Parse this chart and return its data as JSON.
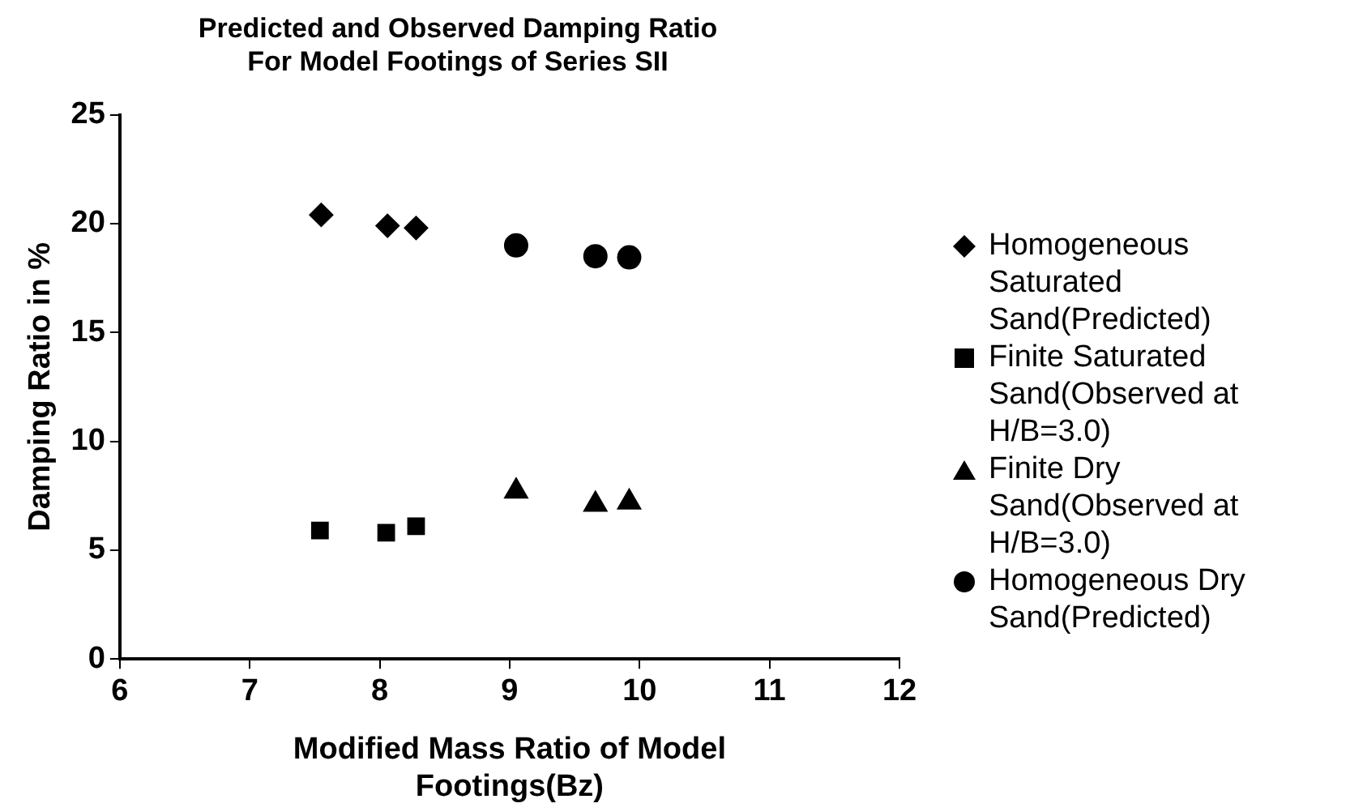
{
  "chart_data": {
    "type": "scatter",
    "title": "Predicted and Observed Damping Ratio\nFor Model Footings of Series SII",
    "xlabel": "Modified Mass Ratio of Model\nFootings(Bz)",
    "ylabel": "Damping Ratio in %",
    "xlim": [
      6,
      12
    ],
    "xticks": [
      6,
      7,
      8,
      9,
      10,
      11,
      12
    ],
    "ylim": [
      0,
      25
    ],
    "yticks": [
      0,
      5,
      10,
      15,
      20,
      25
    ],
    "grid": false,
    "legend": "right",
    "series": [
      {
        "name": "Homogeneous Saturated Sand(Predicted)",
        "color": "#000000",
        "marker": "diamond",
        "x": [
          7.55,
          8.06,
          8.28
        ],
        "values": [
          20.4,
          19.9,
          19.8
        ]
      },
      {
        "name": "Finite Saturated Sand(Observed at H/B=3.0)",
        "color": "#000000",
        "marker": "square",
        "x": [
          7.54,
          8.05,
          8.28
        ],
        "values": [
          5.9,
          5.8,
          6.1
        ]
      },
      {
        "name": "Finite Dry Sand(Observed at H/B=3.0)",
        "color": "#000000",
        "marker": "triangle",
        "x": [
          9.05,
          9.66,
          9.92
        ],
        "values": [
          7.7,
          7.1,
          7.2
        ]
      },
      {
        "name": "Homogeneous Dry Sand(Predicted)",
        "color": "#000000",
        "marker": "circle",
        "x": [
          9.05,
          9.66,
          9.92
        ],
        "values": [
          19.0,
          18.5,
          18.45
        ]
      }
    ]
  }
}
